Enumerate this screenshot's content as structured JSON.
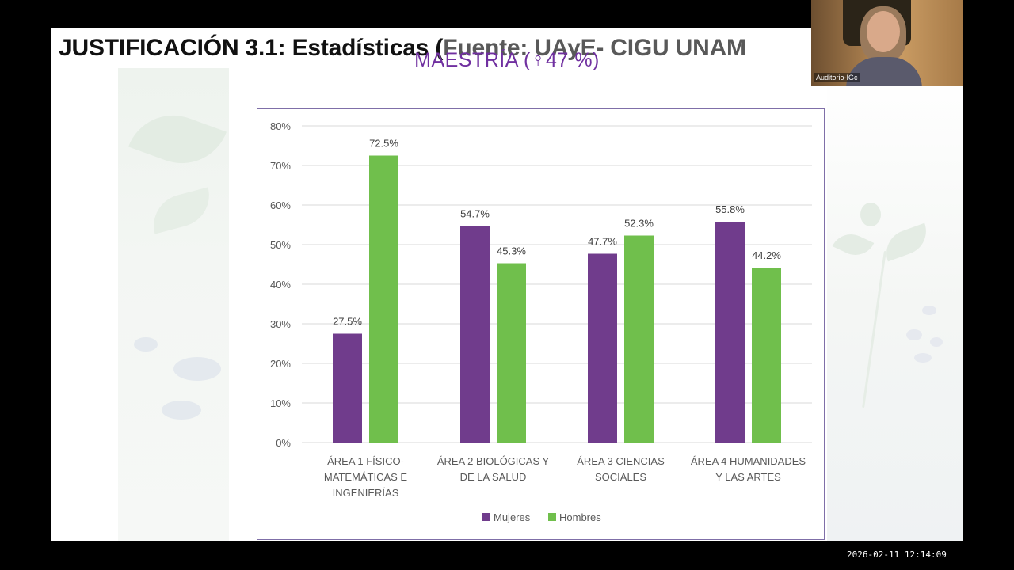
{
  "slide": {
    "title_main": "JUSTIFICACIÓN 3.1: Estadísticas (",
    "title_source": "Fuente: UAyE- CIGU UNAM"
  },
  "webcam": {
    "label": "Auditorio-IGc"
  },
  "timestamp": "2026-02-11  12:14:09",
  "colors": {
    "mujeres": "#703c8c",
    "hombres": "#70bf4c",
    "chart_title": "#7030a0",
    "gridline": "#d9d9d9"
  },
  "chart_data": {
    "type": "bar",
    "title": "MAESTRÍA (♀47 %)",
    "categories": [
      [
        "ÁREA 1 FÍSICO-",
        "MATEMÁTICAS E",
        "INGENIERÍAS"
      ],
      [
        "ÁREA 2 BIOLÓGICAS Y",
        "DE LA SALUD"
      ],
      [
        "ÁREA 3 CIENCIAS",
        "SOCIALES"
      ],
      [
        "ÁREA 4 HUMANIDADES",
        "Y LAS ARTES"
      ]
    ],
    "series": [
      {
        "name": "Mujeres",
        "values": [
          27.5,
          54.7,
          47.7,
          55.8
        ],
        "labels": [
          "27.5%",
          "54.7%",
          "47.7%",
          "55.8%"
        ]
      },
      {
        "name": "Hombres",
        "values": [
          72.5,
          45.3,
          52.3,
          44.2
        ],
        "labels": [
          "72.5%",
          "45.3%",
          "52.3%",
          "44.2%"
        ]
      }
    ],
    "yticks": [
      "0%",
      "10%",
      "20%",
      "30%",
      "40%",
      "50%",
      "60%",
      "70%",
      "80%"
    ],
    "ylim": [
      0,
      80
    ],
    "grid": true,
    "legend": "bottom"
  }
}
